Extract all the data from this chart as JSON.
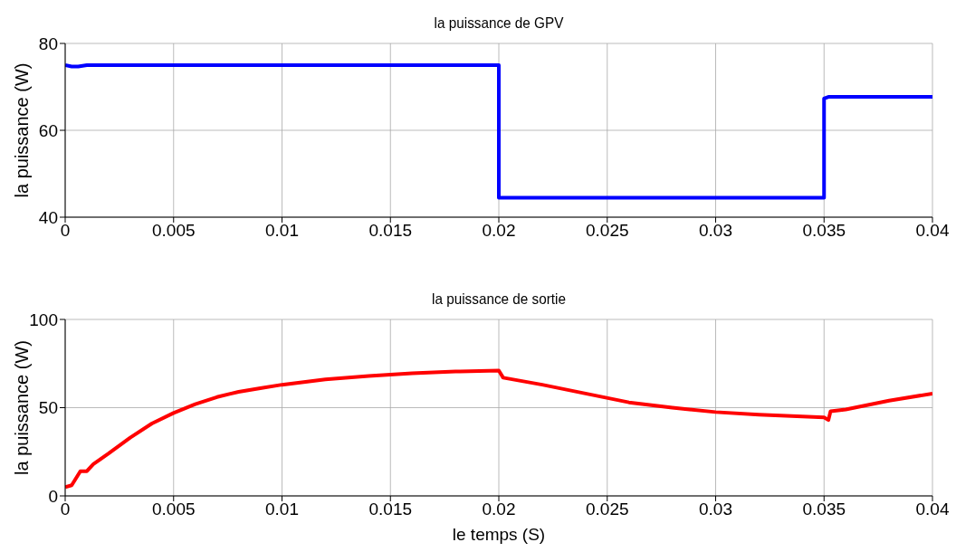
{
  "chart_data": [
    {
      "type": "line",
      "title": "la puissance de GPV",
      "ylabel": "la puissance (W)",
      "xlim": [
        0,
        0.04
      ],
      "xticks": [
        0,
        0.005,
        0.01,
        0.015,
        0.02,
        0.025,
        0.03,
        0.035,
        0.04
      ],
      "ylim": [
        40,
        80
      ],
      "yticks": [
        40,
        60,
        80
      ],
      "grid": true,
      "series": [
        {
          "color": "#0000ff",
          "x": [
            0,
            0.0003,
            0.0006,
            0.001,
            0.02,
            0.02,
            0.035,
            0.035,
            0.0352,
            0.04
          ],
          "values": [
            75,
            74.7,
            74.7,
            75,
            75,
            44.5,
            44.5,
            67.3,
            67.7,
            67.7
          ]
        }
      ]
    },
    {
      "type": "line",
      "title": "la puissance de sortie",
      "xlabel": "le temps (S)",
      "ylabel": "la puissance (W)",
      "xlim": [
        0,
        0.04
      ],
      "xticks": [
        0,
        0.005,
        0.01,
        0.015,
        0.02,
        0.025,
        0.03,
        0.035,
        0.04
      ],
      "ylim": [
        0,
        100
      ],
      "yticks": [
        0,
        50,
        100
      ],
      "grid": true,
      "series": [
        {
          "color": "#ff0000",
          "x": [
            0,
            0.0003,
            0.0007,
            0.001,
            0.0013,
            0.002,
            0.003,
            0.004,
            0.005,
            0.006,
            0.007,
            0.008,
            0.009,
            0.01,
            0.012,
            0.014,
            0.016,
            0.018,
            0.02,
            0.0202,
            0.022,
            0.024,
            0.026,
            0.028,
            0.03,
            0.032,
            0.034,
            0.035,
            0.0352,
            0.0353,
            0.036,
            0.038,
            0.04
          ],
          "values": [
            5,
            6,
            14,
            14,
            18,
            24,
            33,
            41,
            47,
            52,
            56,
            59,
            61,
            63,
            66,
            68,
            69.5,
            70.5,
            71,
            67,
            63,
            58,
            53,
            50,
            47.5,
            46,
            45,
            44.5,
            43,
            48,
            49,
            54,
            58
          ]
        }
      ]
    }
  ]
}
